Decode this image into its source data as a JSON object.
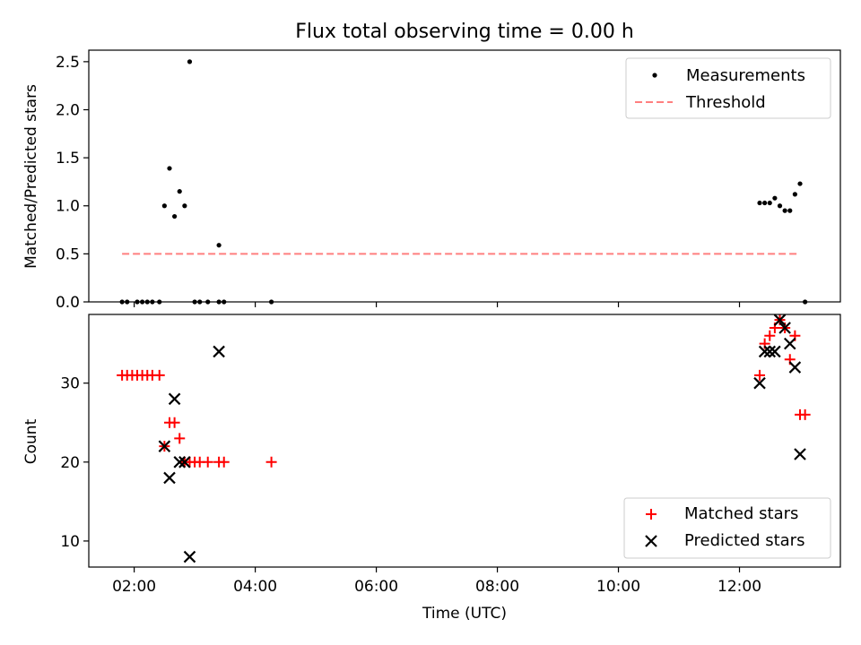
{
  "chart_data": [
    {
      "type": "scatter",
      "title": "Flux total observing time = 0.00 h",
      "ylabel": "Matched/Predicted stars",
      "xlim": [
        "01:15",
        "13:40"
      ],
      "ylim": [
        0,
        2.62
      ],
      "yticks": [
        "0.0",
        "0.5",
        "1.0",
        "1.5",
        "2.0",
        "2.5"
      ],
      "legend_position": "top-right",
      "series": [
        {
          "name": "Measurements",
          "marker": "dot",
          "color": "#000000",
          "points": [
            [
              "01:48",
              0.0
            ],
            [
              "01:53",
              0.0
            ],
            [
              "02:03",
              0.0
            ],
            [
              "02:08",
              0.0
            ],
            [
              "02:13",
              0.0
            ],
            [
              "02:18",
              0.0
            ],
            [
              "02:25",
              0.0
            ],
            [
              "02:30",
              1.0
            ],
            [
              "02:35",
              1.39
            ],
            [
              "02:40",
              0.89
            ],
            [
              "02:45",
              1.15
            ],
            [
              "02:50",
              1.0
            ],
            [
              "02:55",
              2.5
            ],
            [
              "03:00",
              0.0
            ],
            [
              "03:05",
              0.0
            ],
            [
              "03:13",
              0.0
            ],
            [
              "03:24",
              0.59
            ],
            [
              "03:24",
              0.0
            ],
            [
              "03:29",
              0.0
            ],
            [
              "04:16",
              0.0
            ],
            [
              "12:20",
              1.03
            ],
            [
              "12:25",
              1.03
            ],
            [
              "12:30",
              1.03
            ],
            [
              "12:35",
              1.08
            ],
            [
              "12:40",
              1.0
            ],
            [
              "12:45",
              0.95
            ],
            [
              "12:50",
              0.95
            ],
            [
              "12:55",
              1.12
            ],
            [
              "13:00",
              1.23
            ],
            [
              "13:05",
              0.0
            ]
          ]
        },
        {
          "name": "Threshold",
          "style": "dashed",
          "color": "#ff7f7f",
          "points": [
            [
              "01:48",
              0.5
            ],
            [
              "13:00",
              0.5
            ]
          ]
        }
      ]
    },
    {
      "type": "scatter",
      "xlabel": "Time (UTC)",
      "ylabel": "Count",
      "xlim": [
        "01:15",
        "13:40"
      ],
      "ylim": [
        6.7,
        38.7
      ],
      "yticks": [
        "10",
        "20",
        "30"
      ],
      "xticks": [
        "02:00",
        "04:00",
        "06:00",
        "08:00",
        "10:00",
        "12:00"
      ],
      "legend_position": "bottom-right",
      "series": [
        {
          "name": "Matched stars",
          "marker": "plus",
          "color": "#ff0000",
          "points": [
            [
              "01:48",
              31
            ],
            [
              "01:53",
              31
            ],
            [
              "01:58",
              31
            ],
            [
              "02:03",
              31
            ],
            [
              "02:08",
              31
            ],
            [
              "02:13",
              31
            ],
            [
              "02:18",
              31
            ],
            [
              "02:25",
              31
            ],
            [
              "02:30",
              22
            ],
            [
              "02:35",
              25
            ],
            [
              "02:40",
              25
            ],
            [
              "02:45",
              23
            ],
            [
              "02:50",
              20
            ],
            [
              "02:55",
              20
            ],
            [
              "03:00",
              20
            ],
            [
              "03:05",
              20
            ],
            [
              "03:13",
              20
            ],
            [
              "03:24",
              20
            ],
            [
              "03:29",
              20
            ],
            [
              "04:16",
              20
            ],
            [
              "12:20",
              31
            ],
            [
              "12:25",
              35
            ],
            [
              "12:30",
              36
            ],
            [
              "12:35",
              37
            ],
            [
              "12:40",
              38
            ],
            [
              "12:45",
              37
            ],
            [
              "12:50",
              33
            ],
            [
              "12:55",
              36
            ],
            [
              "13:00",
              26
            ],
            [
              "13:05",
              26
            ]
          ]
        },
        {
          "name": "Predicted stars",
          "marker": "x",
          "color": "#000000",
          "points": [
            [
              "02:30",
              22
            ],
            [
              "02:35",
              18
            ],
            [
              "02:40",
              28
            ],
            [
              "02:45",
              20
            ],
            [
              "02:50",
              20
            ],
            [
              "02:55",
              8
            ],
            [
              "03:24",
              34
            ],
            [
              "12:20",
              30
            ],
            [
              "12:25",
              34
            ],
            [
              "12:30",
              34
            ],
            [
              "12:35",
              34
            ],
            [
              "12:40",
              38
            ],
            [
              "12:45",
              37
            ],
            [
              "12:50",
              35
            ],
            [
              "12:55",
              32
            ],
            [
              "13:00",
              21
            ]
          ]
        }
      ]
    }
  ]
}
